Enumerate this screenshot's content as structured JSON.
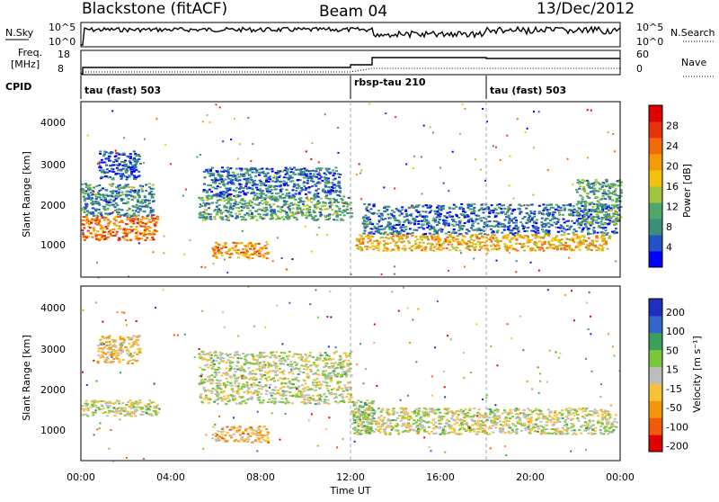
{
  "header": {
    "station": "Blackstone (fitACF)",
    "beam": "Beam 04",
    "date": "13/Dec/2012"
  },
  "top_panel": {
    "left_label": "N.Sky",
    "left_ticks": [
      "10^5",
      "10^0"
    ],
    "right_ticks": [
      "10^5",
      "10^0"
    ],
    "right_label": "N.Search"
  },
  "freq_panel": {
    "left_label_1": "Freq.",
    "left_label_2": "[MHz]",
    "left_ticks": [
      "18",
      "8"
    ],
    "right_ticks": [
      "60",
      "0"
    ],
    "right_label": "Nave"
  },
  "cpid": {
    "label": "CPID",
    "segments": [
      {
        "name": "tau (fast) 503",
        "start_hour": 0
      },
      {
        "name": "rbsp-tau 210",
        "start_hour": 12
      },
      {
        "name": "tau (fast) 503",
        "start_hour": 18
      }
    ]
  },
  "axes": {
    "y_label": "Slant Range [km]",
    "y_ticks": [
      "1000",
      "2000",
      "3000",
      "4000"
    ],
    "x_label": "Time UT",
    "x_ticks": [
      "00:00",
      "04:00",
      "08:00",
      "12:00",
      "16:00",
      "20:00",
      "00:00"
    ]
  },
  "power_scale": {
    "title": "Power [dB]",
    "ticks": [
      "4",
      "8",
      "12",
      "16",
      "20",
      "24",
      "28"
    ],
    "colors": [
      "#0000ff",
      "#2451c8",
      "#3b8f7a",
      "#4fa76a",
      "#9fc63c",
      "#f4c20d",
      "#f79a0a",
      "#f36a0a",
      "#e8320a",
      "#e00000"
    ]
  },
  "velocity_scale": {
    "title": "Velocity [m s⁻¹]",
    "ticks": [
      "200",
      "100",
      "50",
      "15",
      "-15",
      "-50",
      "-100",
      "-200"
    ],
    "colors": [
      "#1c2fbf",
      "#3465c8",
      "#3aa05a",
      "#79c83a",
      "#bdbdbd",
      "#f7c23a",
      "#f7950a",
      "#f05a0a",
      "#e00000"
    ]
  },
  "chart_data": {
    "type": "heatmap",
    "title": "Blackstone (fitACF)",
    "xlabel": "Time UT",
    "ylabel": "Slant Range [km]",
    "xlim": [
      0,
      24
    ],
    "ylim": [
      180,
      4500
    ],
    "panels": [
      {
        "name": "Power",
        "unit": "dB",
        "scale": [
          0,
          30
        ],
        "regions": [
          {
            "t0": 0.0,
            "t1": 3.4,
            "r0": 1100,
            "r1": 1700,
            "level": 22
          },
          {
            "t0": 0.0,
            "t1": 3.2,
            "r0": 1700,
            "r1": 2500,
            "level": 8
          },
          {
            "t0": 0.7,
            "t1": 2.6,
            "r0": 2600,
            "r1": 3300,
            "level": 5
          },
          {
            "t0": 5.2,
            "t1": 12.0,
            "r0": 1600,
            "r1": 2200,
            "level": 10
          },
          {
            "t0": 5.4,
            "t1": 11.5,
            "r0": 2200,
            "r1": 2900,
            "level": 6
          },
          {
            "t0": 5.8,
            "t1": 8.3,
            "r0": 650,
            "r1": 1050,
            "level": 20
          },
          {
            "t0": 12.2,
            "t1": 23.5,
            "r0": 850,
            "r1": 1250,
            "level": 18
          },
          {
            "t0": 12.5,
            "t1": 23.8,
            "r0": 1250,
            "r1": 2000,
            "level": 6
          },
          {
            "t0": 22.0,
            "t1": 24.0,
            "r0": 1500,
            "r1": 2600,
            "level": 10
          }
        ]
      },
      {
        "name": "Velocity",
        "unit": "m s-1",
        "scale": [
          -200,
          200
        ],
        "regions": [
          {
            "t0": 0.0,
            "t1": 3.4,
            "r0": 1300,
            "r1": 1700,
            "level": 0
          },
          {
            "t0": 0.7,
            "t1": 2.6,
            "r0": 2600,
            "r1": 3300,
            "level": -40
          },
          {
            "t0": 5.2,
            "t1": 12.0,
            "r0": 1600,
            "r1": 2900,
            "level": 5
          },
          {
            "t0": 5.8,
            "t1": 8.3,
            "r0": 650,
            "r1": 1050,
            "level": -60
          },
          {
            "t0": 12.2,
            "t1": 23.8,
            "r0": 850,
            "r1": 1500,
            "level": 0
          },
          {
            "t0": 12.0,
            "t1": 13.0,
            "r0": 850,
            "r1": 1700,
            "level": 40
          }
        ]
      }
    ]
  }
}
